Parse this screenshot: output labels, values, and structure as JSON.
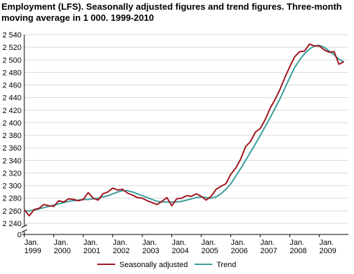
{
  "chart_data": {
    "type": "line",
    "title": "Employment (LFS). Seasonally adjusted figures and trend figures. Three-month moving average in 1 000. 1999-2010",
    "categories": [
      "Jan. 1999",
      null,
      null,
      null,
      null,
      null,
      "Jan. 2000",
      null,
      null,
      null,
      null,
      null,
      "Jan. 2001",
      null,
      null,
      null,
      null,
      null,
      "Jan. 2002",
      null,
      null,
      null,
      null,
      null,
      "Jan. 2003",
      null,
      null,
      null,
      null,
      null,
      "Jan. 2004",
      null,
      null,
      null,
      null,
      null,
      "Jan. 2005",
      null,
      null,
      null,
      null,
      null,
      "Jan. 2006",
      null,
      null,
      null,
      null,
      null,
      "Jan. 2007",
      null,
      null,
      null,
      null,
      null,
      "Jan. 2008",
      null,
      null,
      null,
      null,
      null,
      "Jan. 2009",
      null,
      null,
      null,
      null,
      null
    ],
    "series": [
      {
        "name": "Seasonally adjusted",
        "color": "#a0171f",
        "values": [
          2262,
          2252,
          2262,
          2264,
          2270,
          2268,
          2267,
          2276,
          2274,
          2279,
          2278,
          2276,
          2278,
          2289,
          2280,
          2277,
          2287,
          2290,
          2296,
          2293,
          2294,
          2288,
          2285,
          2281,
          2280,
          2276,
          2273,
          2270,
          2275,
          2281,
          2268,
          2279,
          2280,
          2284,
          2283,
          2287,
          2283,
          2277,
          2283,
          2294,
          2299,
          2303,
          2318,
          2328,
          2342,
          2362,
          2370,
          2385,
          2391,
          2405,
          2423,
          2437,
          2453,
          2472,
          2489,
          2505,
          2513,
          2514,
          2525,
          2522,
          2522,
          2516,
          2512,
          2513,
          2493,
          2497
        ]
      },
      {
        "name": "Trend",
        "color": "#3a9e9c",
        "values": [
          2260,
          2260,
          2261,
          2263,
          2265,
          2267,
          2269,
          2271,
          2273,
          2275,
          2276,
          2277,
          2278,
          2278,
          2279,
          2280,
          2282,
          2284,
          2287,
          2290,
          2292,
          2292,
          2290,
          2287,
          2284,
          2281,
          2278,
          2275,
          2274,
          2274,
          2274,
          2274,
          2275,
          2277,
          2279,
          2281,
          2282,
          2281,
          2280,
          2282,
          2287,
          2294,
          2303,
          2315,
          2327,
          2340,
          2353,
          2366,
          2380,
          2394,
          2408,
          2423,
          2438,
          2455,
          2472,
          2488,
          2500,
          2510,
          2517,
          2522,
          2523,
          2520,
          2514,
          2508,
          2501,
          2497
        ]
      }
    ],
    "ylim": [
      0,
      2540
    ],
    "yticks": [
      0,
      {
        "value": 2240,
        "label": "2 240"
      },
      {
        "value": 2260,
        "label": "2 260"
      },
      {
        "value": 2280,
        "label": "2 280"
      },
      {
        "value": 2300,
        "label": "2 300"
      },
      {
        "value": 2320,
        "label": "2 320"
      },
      {
        "value": 2340,
        "label": "2 340"
      },
      {
        "value": 2360,
        "label": "2 360"
      },
      {
        "value": 2380,
        "label": "2 380"
      },
      {
        "value": 2400,
        "label": "2 400"
      },
      {
        "value": 2420,
        "label": "2 420"
      },
      {
        "value": 2440,
        "label": "2 440"
      },
      {
        "value": 2460,
        "label": "2 460"
      },
      {
        "value": 2480,
        "label": "2 480"
      },
      {
        "value": 2500,
        "label": "2 500"
      },
      {
        "value": 2520,
        "label": "2 520"
      },
      {
        "value": 2540,
        "label": "2 540"
      }
    ],
    "broken_axis": true,
    "grid": true
  }
}
